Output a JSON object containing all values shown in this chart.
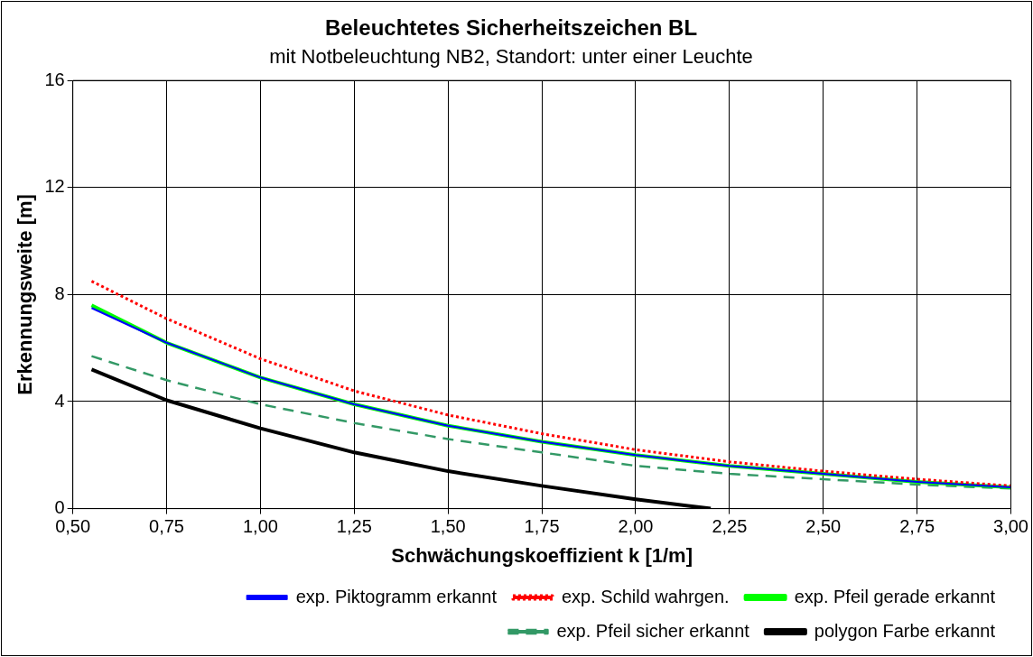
{
  "chart_data": {
    "type": "line",
    "title": "Beleuchtetes Sicherheitszeichen BL",
    "subtitle": "mit Notbeleuchtung NB2, Standort: unter einer Leuchte",
    "xlabel": "Schwächungskoeffizient k [1/m]",
    "ylabel": "Erkennungsweite [m]",
    "x": [
      0.55,
      0.75,
      1.0,
      1.25,
      1.5,
      1.75,
      2.0,
      2.25,
      2.5,
      2.75,
      3.0
    ],
    "series": [
      {
        "name": "exp. Schild wahrgen.",
        "color": "#ff0000",
        "line_style": "dotted",
        "values": [
          8.5,
          7.1,
          5.6,
          4.4,
          3.5,
          2.8,
          2.2,
          1.75,
          1.4,
          1.1,
          0.85
        ]
      },
      {
        "name": "exp. Pfeil gerade erkannt",
        "color": "#00ff00",
        "line_style": "solid",
        "values": [
          7.6,
          6.2,
          4.9,
          3.9,
          3.1,
          2.5,
          2.0,
          1.6,
          1.3,
          1.0,
          0.8
        ]
      },
      {
        "name": "exp. Piktogramm erkannt",
        "color": "#0000ff",
        "line_style": "solid",
        "values": [
          7.5,
          6.2,
          4.9,
          3.9,
          3.1,
          2.5,
          2.0,
          1.6,
          1.3,
          1.0,
          0.8
        ]
      },
      {
        "name": "exp. Pfeil sicher erkannt",
        "color": "#339966",
        "line_style": "dashed",
        "values": [
          5.7,
          4.8,
          3.9,
          3.2,
          2.6,
          2.1,
          1.6,
          1.3,
          1.1,
          0.9,
          0.75
        ]
      },
      {
        "name": "polygon Farbe erkannt",
        "color": "#000000",
        "line_style": "solid",
        "x": [
          0.55,
          0.75,
          1.0,
          1.25,
          1.5,
          1.75,
          2.0,
          2.2
        ],
        "values": [
          5.2,
          4.05,
          3.0,
          2.1,
          1.4,
          0.85,
          0.35,
          0.0
        ]
      }
    ],
    "xlim": [
      0.5,
      3.0
    ],
    "xticks": [
      {
        "value": 0.5,
        "label": "0,50"
      },
      {
        "value": 0.75,
        "label": "0,75"
      },
      {
        "value": 1.0,
        "label": "1,00"
      },
      {
        "value": 1.25,
        "label": "1,25"
      },
      {
        "value": 1.5,
        "label": "1,50"
      },
      {
        "value": 1.75,
        "label": "1,75"
      },
      {
        "value": 2.0,
        "label": "2,00"
      },
      {
        "value": 2.25,
        "label": "2,25"
      },
      {
        "value": 2.5,
        "label": "2,50"
      },
      {
        "value": 2.75,
        "label": "2,75"
      },
      {
        "value": 3.0,
        "label": "3,00"
      }
    ],
    "ylim": [
      0,
      16
    ],
    "yticks": [
      0,
      4,
      8,
      12,
      16
    ],
    "grid": true,
    "legend": "bottom",
    "marker": "none"
  }
}
